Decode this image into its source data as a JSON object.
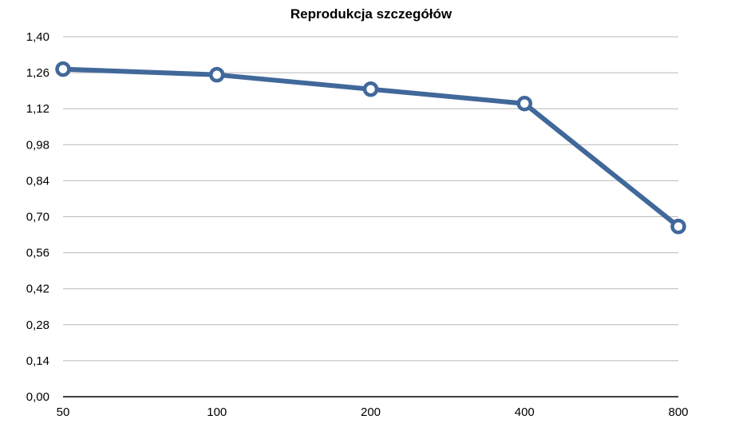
{
  "chart_data": {
    "type": "line",
    "title": "Reprodukcja szczegółów",
    "xlabel": "",
    "ylabel": "",
    "categories": [
      "50",
      "100",
      "200",
      "400",
      "800"
    ],
    "series": [
      {
        "values": [
          1.274,
          1.252,
          1.196,
          1.14,
          0.662
        ]
      }
    ],
    "yticks": [
      "0,00",
      "0,14",
      "0,28",
      "0,42",
      "0,56",
      "0,70",
      "0,84",
      "0,98",
      "1,12",
      "1,26",
      "1,40"
    ],
    "ylim": [
      0,
      1.4
    ],
    "grid": true,
    "legend": "none",
    "colors": {
      "line": "#41689a",
      "marker_fill": "#ffffff",
      "grid": "#b8b8b8",
      "axis": "#000000"
    }
  }
}
